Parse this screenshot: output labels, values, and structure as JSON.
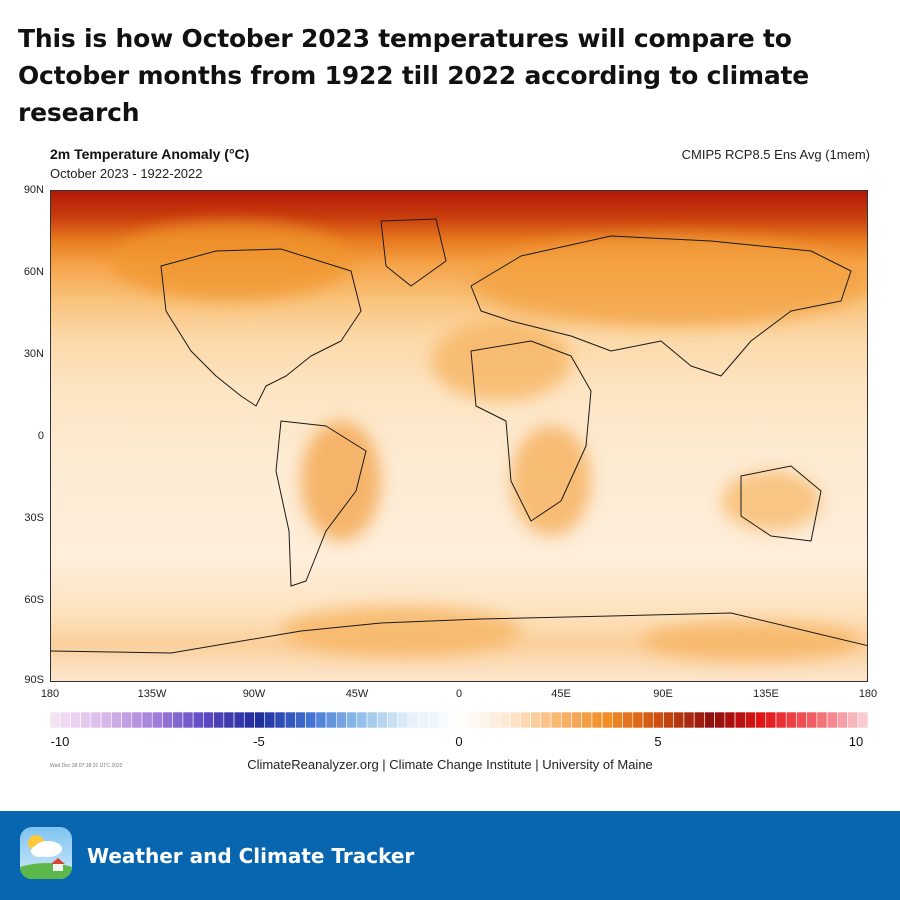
{
  "headline": "This is how October 2023 temperatures will compare to October months from 1922 till 2022 according to climate research",
  "map": {
    "title": "2m Temperature Anomaly (°C)",
    "subtitle": "October 2023 - 1922-2022",
    "model": "CMIP5 RCP8.5 Ens Avg (1mem)",
    "lat_labels": [
      "90N",
      "60N",
      "30N",
      "0",
      "30S",
      "60S",
      "90S"
    ],
    "lon_labels": [
      "180",
      "135W",
      "90W",
      "45W",
      "0",
      "45E",
      "90E",
      "135E",
      "180"
    ]
  },
  "colorbar": {
    "ticks": [
      "-10",
      "-5",
      "0",
      "5",
      "10"
    ],
    "range": [
      -10,
      10
    ],
    "colors": [
      "#f3e3f5",
      "#d9b8ec",
      "#a07ddb",
      "#5a46c0",
      "#1f2b9a",
      "#3f6fd1",
      "#8fbde9",
      "#e2eff9",
      "#ffffff",
      "#fde7cf",
      "#f9b46a",
      "#f08a20",
      "#cc4a10",
      "#8a0f0f",
      "#e41313",
      "#f25e64",
      "#f9cacf"
    ]
  },
  "stamp": "Wed Dec 28 07:18:31 UTC 2022",
  "credits": "ClimateReanalyzer.org | Climate Change Institute | University of Maine",
  "footer": {
    "brand": "Weather and Climate Tracker",
    "icon": "weather-app-icon"
  }
}
